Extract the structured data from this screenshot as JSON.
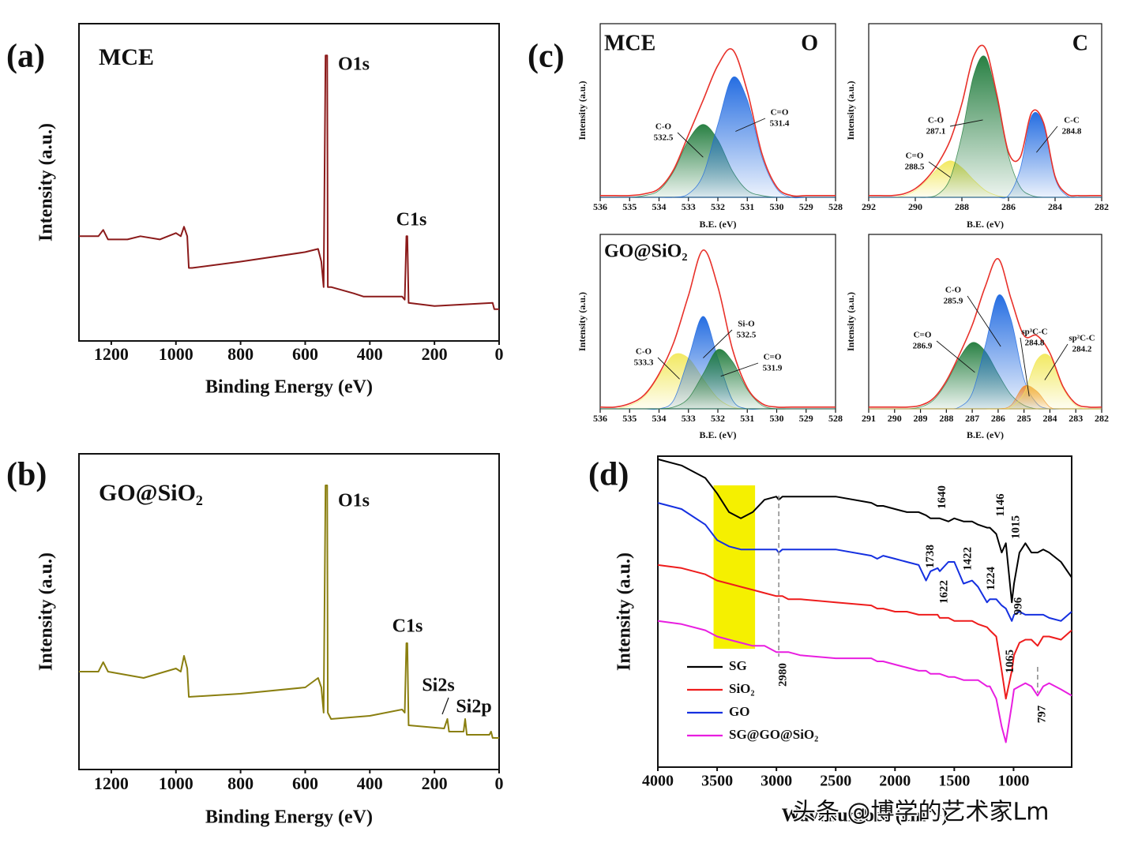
{
  "chart_data": [
    {
      "type": "line",
      "panel_label": "(a)",
      "title": "MCE",
      "xlabel": "Binding Energy (eV)",
      "ylabel": "Intensity (a.u.)",
      "annotations": [
        "O1s",
        "C1s"
      ],
      "xlim": [
        1300,
        0
      ],
      "xticks": [
        1200,
        1000,
        800,
        600,
        400,
        200,
        0
      ],
      "ylim": [
        0,
        100
      ],
      "x": [
        1300,
        1240,
        1225,
        1210,
        1150,
        1110,
        1050,
        1000,
        985,
        975,
        965,
        960,
        950,
        800,
        600,
        560,
        550,
        543,
        537,
        532,
        530,
        520,
        450,
        420,
        300,
        292,
        287,
        284,
        280,
        200,
        20,
        15,
        0
      ],
      "series": [
        {
          "color": "#8b1a1a",
          "values": [
            33,
            33,
            35,
            32,
            32,
            33,
            32,
            34,
            33,
            36,
            33,
            23,
            23,
            25,
            28,
            29,
            25,
            17,
            90,
            90,
            17,
            17,
            15,
            14,
            14,
            13,
            33,
            33,
            12,
            11,
            12,
            10,
            10
          ]
        }
      ]
    },
    {
      "type": "line",
      "panel_label": "(b)",
      "title": "GO@SiO₂",
      "xlabel": "Binding Energy (eV)",
      "ylabel": "Intensity (a.u.)",
      "annotations": [
        "O1s",
        "C1s",
        "Si2s",
        "Si2p"
      ],
      "xlim": [
        1300,
        0
      ],
      "xticks": [
        1200,
        1000,
        800,
        600,
        400,
        200,
        0
      ],
      "ylim": [
        0,
        100
      ],
      "x": [
        1300,
        1240,
        1225,
        1210,
        1100,
        1000,
        985,
        975,
        965,
        960,
        800,
        600,
        560,
        550,
        543,
        537,
        532,
        530,
        520,
        400,
        300,
        292,
        287,
        284,
        280,
        170,
        160,
        155,
        110,
        105,
        100,
        30,
        25,
        20,
        0
      ],
      "series": [
        {
          "color": "#8a7f10",
          "values": [
            31,
            31,
            34,
            31,
            29,
            32,
            31,
            36,
            32,
            23,
            24,
            26,
            29,
            26,
            18,
            90,
            90,
            18,
            16,
            17,
            19,
            18,
            40,
            40,
            14,
            13,
            16,
            12,
            12,
            16,
            11,
            11,
            12,
            10,
            10
          ]
        }
      ]
    },
    {
      "type": "xps-fit",
      "panel_label": "(c)",
      "title": "MCE",
      "label": "O",
      "xlabel": "B.E. (eV)",
      "ylabel": "Intensity (a.u.)",
      "xlim": [
        536,
        528
      ],
      "xticks": [
        536,
        535,
        534,
        533,
        532,
        531,
        530,
        529,
        528
      ],
      "ylim": [
        0,
        100
      ],
      "x": [
        536,
        535.5,
        535,
        534.5,
        534,
        533.5,
        533,
        532.5,
        532,
        531.5,
        531,
        530.5,
        530,
        529.5,
        529,
        528.5,
        528
      ],
      "series": [
        {
          "name": "C-O",
          "peak": 532.5,
          "color": "#1e7a3a",
          "values": [
            0,
            0,
            0,
            1,
            4,
            15,
            33,
            42,
            33,
            15,
            4,
            1,
            0,
            0,
            0,
            0,
            0
          ]
        },
        {
          "name": "C=O",
          "peak": 531.4,
          "color": "#1a66e0",
          "values": [
            0,
            0,
            0,
            0,
            0,
            0,
            2,
            13,
            42,
            69,
            56,
            23,
            5,
            0,
            0,
            0,
            0
          ]
        },
        {
          "color": "#e8312a",
          "values": [
            1,
            1,
            1,
            2,
            5,
            16,
            36,
            56,
            76,
            85,
            61,
            25,
            6,
            1,
            1,
            1,
            1
          ]
        }
      ]
    },
    {
      "type": "xps-fit",
      "label": "C",
      "xlabel": "B.E. (eV)",
      "ylabel": "Intensity (a.u.)",
      "xlim": [
        292,
        282
      ],
      "xticks": [
        292,
        290,
        288,
        286,
        284,
        282
      ],
      "ylim": [
        0,
        100
      ],
      "x": [
        292,
        291.5,
        291,
        290.5,
        290,
        289.5,
        289,
        288.5,
        288,
        287.5,
        287,
        286.5,
        286,
        285.5,
        285,
        284.5,
        284,
        283.5,
        283,
        282.5,
        282
      ],
      "series": [
        {
          "name": "C=O",
          "peak": 288.5,
          "color": "#f2e85a",
          "values": [
            0,
            0,
            0,
            1,
            4,
            10,
            17,
            21,
            17,
            10,
            4,
            1,
            0,
            0,
            0,
            0,
            0,
            0,
            0,
            0,
            0
          ]
        },
        {
          "name": "C-O",
          "peak": 287.1,
          "color": "#1e7a3a",
          "values": [
            0,
            0,
            0,
            0,
            0,
            0,
            2,
            11,
            36,
            70,
            81,
            57,
            24,
            6,
            1,
            0,
            0,
            0,
            0,
            0,
            0
          ]
        },
        {
          "name": "C-C",
          "peak": 284.8,
          "color": "#1a66e0",
          "values": [
            0,
            0,
            0,
            0,
            0,
            0,
            0,
            0,
            0,
            0,
            0,
            0,
            1,
            16,
            47,
            42,
            11,
            1,
            0,
            0,
            0
          ]
        },
        {
          "color": "#e8312a",
          "values": [
            1,
            1,
            1,
            2,
            5,
            11,
            20,
            33,
            54,
            81,
            86,
            59,
            26,
            23,
            49,
            43,
            12,
            2,
            1,
            1,
            1
          ]
        }
      ]
    },
    {
      "type": "xps-fit",
      "title": "GO@SiO₂",
      "xlabel": "B.E. (eV)",
      "ylabel": "Intensity (a.u.)",
      "xlim": [
        536,
        528
      ],
      "xticks": [
        536,
        535,
        534,
        533,
        532,
        531,
        530,
        529,
        528
      ],
      "ylim": [
        0,
        100
      ],
      "x": [
        536,
        535.5,
        535,
        534.5,
        534,
        533.5,
        533,
        532.5,
        532,
        531.5,
        531,
        530.5,
        530,
        529.5,
        529,
        528.5,
        528
      ],
      "series": [
        {
          "name": "C-O",
          "peak": 533.3,
          "color": "#f2e85a",
          "values": [
            0,
            0,
            2,
            7,
            19,
            31,
            29,
            17,
            6,
            1,
            0,
            0,
            0,
            0,
            0,
            0,
            0
          ]
        },
        {
          "name": "Si-O",
          "peak": 532.5,
          "color": "#1a66e0",
          "values": [
            0,
            0,
            0,
            0,
            0,
            5,
            29,
            53,
            29,
            5,
            0,
            0,
            0,
            0,
            0,
            0,
            0
          ]
        },
        {
          "name": "C=O",
          "peak": 531.9,
          "color": "#1e7a3a",
          "values": [
            0,
            0,
            0,
            0,
            0,
            1,
            6,
            20,
            34,
            27,
            11,
            2,
            0,
            0,
            0,
            0,
            0
          ]
        },
        {
          "color": "#e8312a",
          "values": [
            1,
            1,
            3,
            8,
            20,
            38,
            65,
            91,
            70,
            34,
            12,
            3,
            1,
            1,
            1,
            1,
            1
          ]
        }
      ]
    },
    {
      "type": "xps-fit",
      "xlabel": "B.E. (eV)",
      "ylabel": "Intensity (a.u.)",
      "xlim": [
        291,
        282
      ],
      "xticks": [
        291,
        290,
        289,
        288,
        287,
        286,
        285,
        284,
        283,
        282
      ],
      "ylim": [
        0,
        100
      ],
      "x": [
        291,
        290.5,
        290,
        289.5,
        289,
        288.5,
        288,
        287.5,
        287,
        286.5,
        286,
        285.5,
        285,
        284.5,
        284,
        283.5,
        283,
        282.5,
        282
      ],
      "series": [
        {
          "name": "C=O",
          "peak": 286.9,
          "color": "#1e7a3a",
          "values": [
            0,
            0,
            0,
            0,
            1,
            5,
            15,
            29,
            38,
            33,
            20,
            8,
            2,
            0,
            0,
            0,
            0,
            0,
            0
          ]
        },
        {
          "name": "C-O",
          "peak": 285.9,
          "color": "#1a66e0",
          "values": [
            0,
            0,
            0,
            0,
            0,
            0,
            0,
            1,
            9,
            36,
            65,
            51,
            17,
            3,
            0,
            0,
            0,
            0,
            0
          ]
        },
        {
          "name": "sp³C-C",
          "peak": 284.8,
          "color": "#f08a30",
          "values": [
            0,
            0,
            0,
            0,
            0,
            0,
            0,
            0,
            0,
            0,
            0,
            2,
            13,
            10,
            1,
            0,
            0,
            0,
            0
          ]
        },
        {
          "name": "sp²C-C",
          "peak": 284.2,
          "color": "#f2e85a",
          "values": [
            0,
            0,
            0,
            0,
            0,
            0,
            0,
            0,
            0,
            0,
            0,
            1,
            9,
            28,
            30,
            12,
            2,
            0,
            0
          ]
        },
        {
          "color": "#e8312a",
          "values": [
            1,
            1,
            1,
            1,
            2,
            6,
            16,
            31,
            48,
            70,
            86,
            63,
            42,
            42,
            32,
            13,
            3,
            1,
            1
          ]
        }
      ]
    },
    {
      "type": "line",
      "panel_label": "(d)",
      "xlabel": "Wavenumber (cm⁻¹)",
      "ylabel": "Intensity (a.u.)",
      "watermark": "头条 @博学的艺术家Lm",
      "legend": "lower-left",
      "highlight": [
        3530,
        3180
      ],
      "highlight_color": "#f5f000",
      "peak_labels": [
        2980,
        1640,
        1146,
        1015,
        1738,
        1622,
        1422,
        1224,
        996,
        1065,
        797
      ],
      "xlim": [
        4000,
        510
      ],
      "xticks": [
        4000,
        3500,
        3000,
        2500,
        2000,
        1500,
        1000
      ],
      "ylim": [
        0,
        100
      ],
      "x": [
        4000,
        3800,
        3600,
        3500,
        3400,
        3300,
        3200,
        3100,
        3000,
        2980,
        2950,
        2900,
        2800,
        2500,
        2200,
        2150,
        2100,
        2000,
        1900,
        1800,
        1738,
        1700,
        1640,
        1622,
        1550,
        1500,
        1422,
        1350,
        1300,
        1224,
        1200,
        1146,
        1100,
        1065,
        1015,
        996,
        950,
        900,
        850,
        797,
        750,
        700,
        600,
        510
      ],
      "series": [
        {
          "name": "SG",
          "color": "#000000",
          "values": [
            99,
            97,
            93,
            88,
            82,
            80,
            82,
            86,
            87,
            86,
            87,
            87,
            87,
            87,
            85,
            84,
            84,
            83,
            82,
            82,
            81,
            80,
            80,
            80,
            79,
            80,
            79,
            79,
            78,
            77,
            77,
            75,
            69,
            72,
            53,
            59,
            69,
            72,
            69,
            69,
            70,
            69,
            66,
            61
          ]
        },
        {
          "name": "SiO₂",
          "color": "#ee1c1c",
          "values": [
            65,
            64,
            62,
            60,
            59,
            58,
            57,
            56,
            55,
            55,
            55,
            54,
            54,
            53,
            52,
            51,
            51,
            50,
            50,
            49,
            49,
            49,
            49,
            48,
            48,
            47,
            47,
            47,
            46,
            45,
            44,
            42,
            31,
            22,
            31,
            36,
            40,
            41,
            41,
            39,
            42,
            42,
            41,
            44
          ]
        },
        {
          "name": "GO",
          "color": "#1530e0",
          "values": [
            85,
            83,
            78,
            73,
            71,
            70,
            70,
            70,
            70,
            69,
            70,
            70,
            70,
            70,
            68,
            67,
            68,
            67,
            66,
            65,
            60,
            63,
            64,
            63,
            66,
            66,
            59,
            60,
            58,
            53,
            54,
            54,
            52,
            51,
            47,
            49,
            50,
            49,
            49,
            49,
            49,
            48,
            47,
            50
          ]
        },
        {
          "name": "SG@GO@SiO₂",
          "color": "#e81ee0",
          "values": [
            47,
            46,
            44,
            42,
            41,
            40,
            39,
            39,
            37,
            37,
            37,
            37,
            36,
            35,
            35,
            34,
            34,
            33,
            32,
            31,
            31,
            30,
            30,
            30,
            29,
            29,
            28,
            28,
            28,
            26,
            26,
            22,
            13,
            8,
            20,
            25,
            26,
            27,
            26,
            23,
            26,
            27,
            25,
            23
          ]
        }
      ]
    }
  ]
}
